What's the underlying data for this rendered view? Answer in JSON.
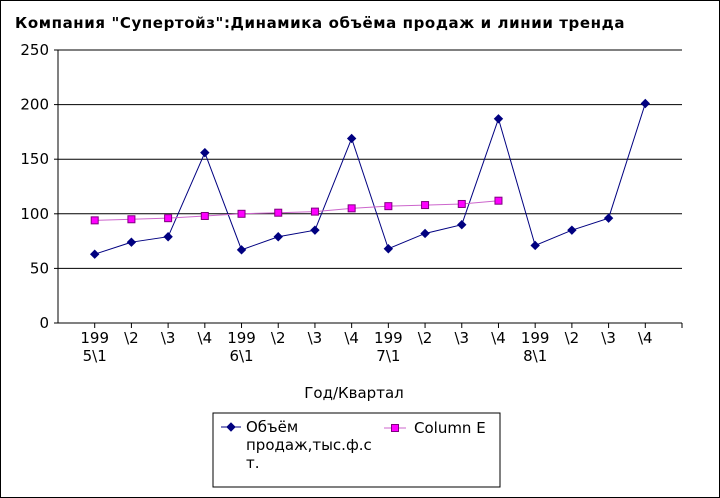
{
  "chart_data": {
    "type": "line",
    "title": "Компания \"Супертойз\":Динамика  объёма  продаж  и  линии  тренда",
    "xlabel": "Год/Квартал",
    "ylabel": "",
    "ylim": [
      0,
      250
    ],
    "yticks": [
      0,
      50,
      100,
      150,
      200,
      250
    ],
    "grid": true,
    "categories": [
      [
        "199",
        "5\\1"
      ],
      [
        "\\2"
      ],
      [
        "\\3"
      ],
      [
        "\\4"
      ],
      [
        "199",
        "6\\1"
      ],
      [
        "\\2"
      ],
      [
        "\\3"
      ],
      [
        "\\4"
      ],
      [
        "199",
        "7\\1"
      ],
      [
        "\\2"
      ],
      [
        "\\3"
      ],
      [
        "\\4"
      ],
      [
        "199",
        "8\\1"
      ],
      [
        "\\2"
      ],
      [
        "\\3"
      ],
      [
        "\\4"
      ]
    ],
    "series": [
      {
        "name_lines": [
          "Объём",
          "продаж,тыс.ф.с",
          "т."
        ],
        "color": "#000080",
        "marker": "diamond",
        "values": [
          63,
          74,
          79,
          156,
          67,
          79,
          85,
          169,
          68,
          82,
          90,
          187,
          71,
          85,
          96,
          201
        ]
      },
      {
        "name_lines": [
          "Column E"
        ],
        "color": "#ff00ff",
        "line_color": "#cc66cc",
        "marker": "square",
        "values": [
          94,
          95,
          96,
          98,
          100,
          101,
          102,
          105,
          107,
          108,
          109,
          112,
          null,
          null,
          null,
          null
        ]
      }
    ]
  }
}
